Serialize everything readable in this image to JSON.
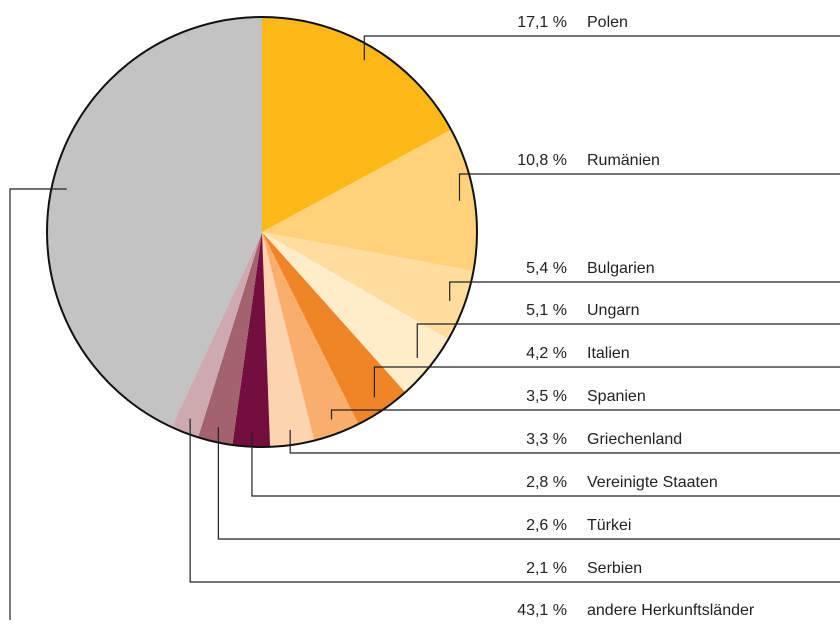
{
  "chart_data": {
    "type": "pie",
    "categories": [
      "Polen",
      "Rumänien",
      "Bulgarien",
      "Ungarn",
      "Italien",
      "Spanien",
      "Griechenland",
      "Vereinigte Staaten",
      "Türkei",
      "Serbien",
      "andere Herkunftsländer"
    ],
    "values": [
      17.1,
      10.8,
      5.4,
      5.1,
      4.2,
      3.5,
      3.3,
      2.8,
      2.6,
      2.1,
      43.1
    ],
    "value_labels": [
      "17,1 %",
      "10,8 %",
      "5,4 %",
      "5,1 %",
      "4,2 %",
      "3,5 %",
      "3,3 %",
      "2,8 %",
      "2,6 %",
      "2,1 %",
      "43,1 %"
    ],
    "colors": [
      "#fbb817",
      "#fed17a",
      "#fedd9e",
      "#ffecc9",
      "#f08528",
      "#f9ae6c",
      "#fdd3b0",
      "#730e3f",
      "#a2636f",
      "#cfa9b0",
      "#c2c3c2"
    ]
  }
}
